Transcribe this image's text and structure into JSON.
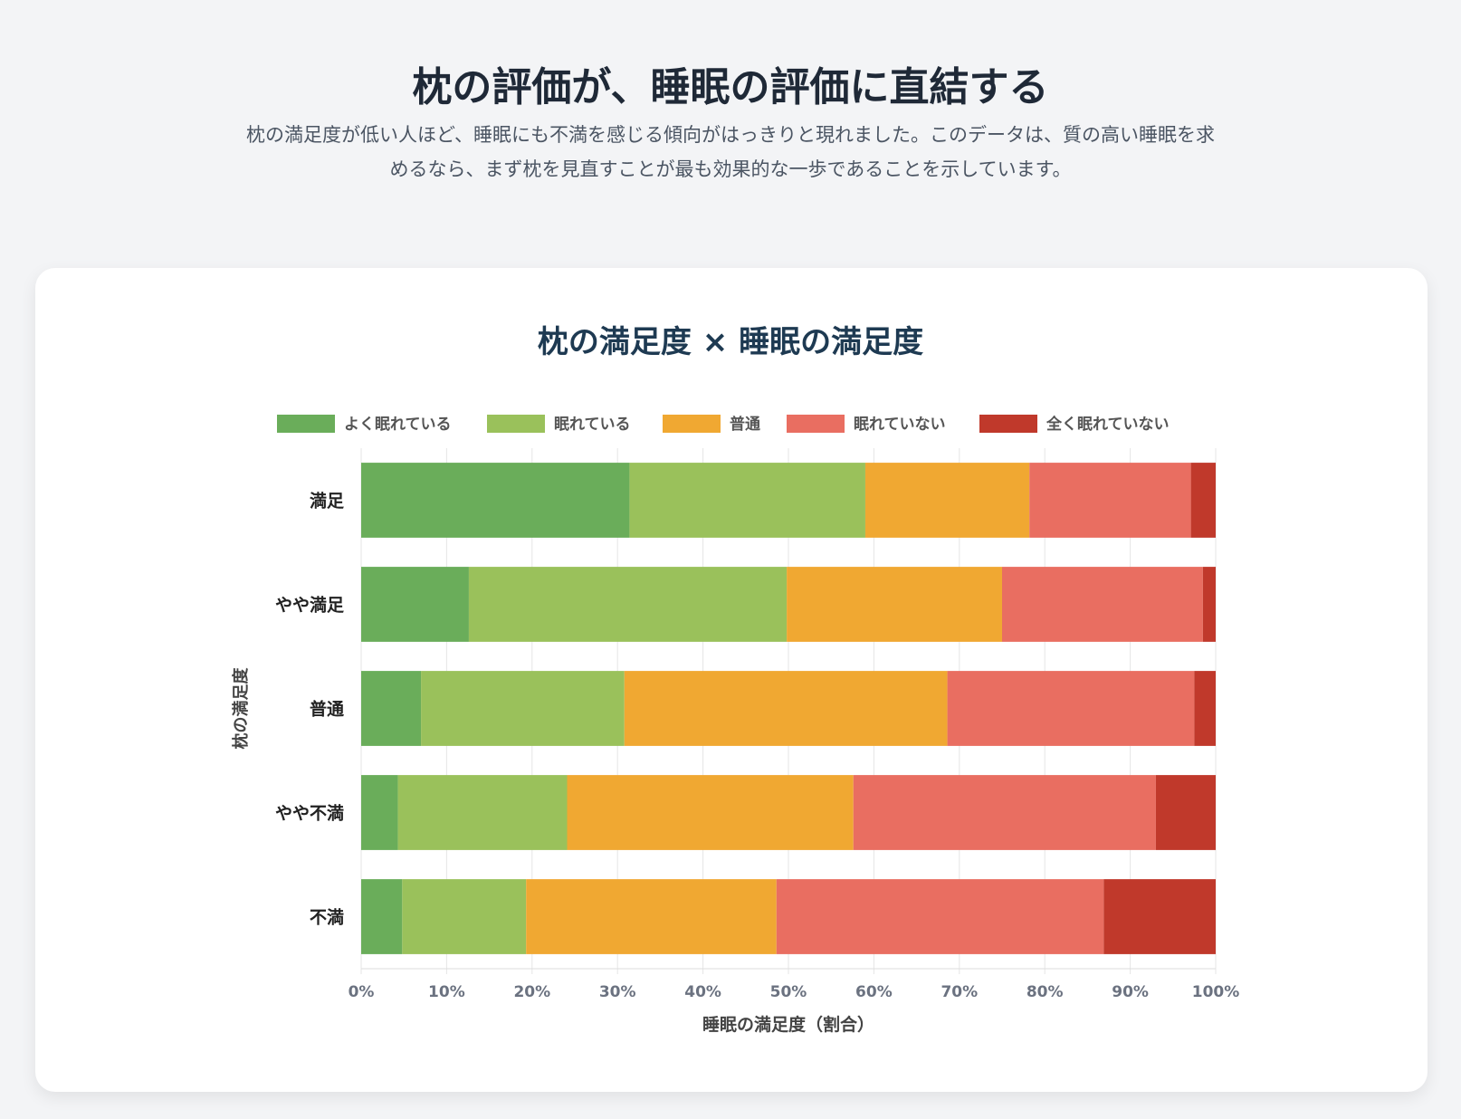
{
  "header": {
    "title": "枕の評価が、睡眠の評価に直結する",
    "subtitle": "枕の満足度が低い人ほど、睡眠にも不満を感じる傾向がはっきりと現れました。このデータは、質の高い睡眠を求めるなら、まず枕を見直すことが最も効果的な一歩であることを示しています。"
  },
  "chart_data": {
    "type": "bar",
    "orientation": "horizontal",
    "stacked": true,
    "title": "枕の満足度 × 睡眠の満足度",
    "xlabel": "睡眠の満足度（割合）",
    "ylabel": "枕の満足度",
    "xlim": [
      0,
      100
    ],
    "xticks": [
      "0%",
      "10%",
      "20%",
      "30%",
      "40%",
      "50%",
      "60%",
      "70%",
      "80%",
      "90%",
      "100%"
    ],
    "grid": true,
    "legend": "top",
    "categories": [
      "満足",
      "やや満足",
      "普通",
      "やや不満",
      "不満"
    ],
    "series": [
      {
        "name": "よく眠れている",
        "color": "#6aad5a",
        "values": [
          31.4,
          12.6,
          7.0,
          4.3,
          4.8
        ]
      },
      {
        "name": "眠れている",
        "color": "#9ac15b",
        "values": [
          27.6,
          37.2,
          23.8,
          19.8,
          14.5
        ]
      },
      {
        "name": "普通",
        "color": "#f0a832",
        "values": [
          19.2,
          25.2,
          37.8,
          33.5,
          29.3
        ]
      },
      {
        "name": "眠れていない",
        "color": "#e96e61",
        "values": [
          18.9,
          23.5,
          28.9,
          35.4,
          38.3
        ]
      },
      {
        "name": "全く眠れていない",
        "color": "#c0392b",
        "values": [
          2.9,
          1.5,
          2.5,
          7.0,
          13.1
        ]
      }
    ]
  }
}
